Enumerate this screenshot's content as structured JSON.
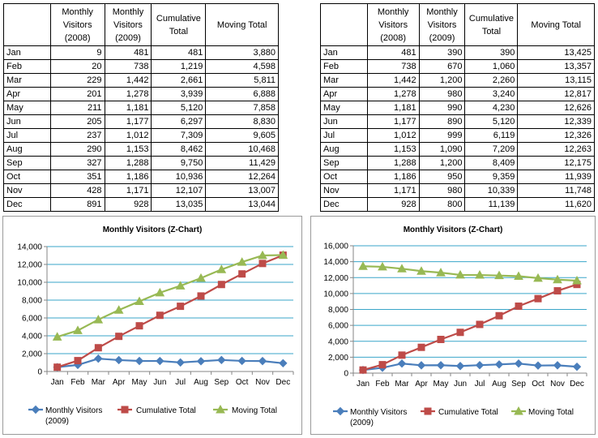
{
  "left_table": {
    "headers": [
      "",
      "Monthly\nVisitors\n(2008)",
      "Monthly\nVisitors\n(2009)",
      "Cumulative\nTotal",
      "Moving Total"
    ],
    "rows": [
      [
        "Jan",
        "9",
        "481",
        "481",
        "3,880"
      ],
      [
        "Feb",
        "20",
        "738",
        "1,219",
        "4,598"
      ],
      [
        "Mar",
        "229",
        "1,442",
        "2,661",
        "5,811"
      ],
      [
        "Apr",
        "201",
        "1,278",
        "3,939",
        "6,888"
      ],
      [
        "May",
        "211",
        "1,181",
        "5,120",
        "7,858"
      ],
      [
        "Jun",
        "205",
        "1,177",
        "6,297",
        "8,830"
      ],
      [
        "Jul",
        "237",
        "1,012",
        "7,309",
        "9,605"
      ],
      [
        "Aug",
        "290",
        "1,153",
        "8,462",
        "10,468"
      ],
      [
        "Sep",
        "327",
        "1,288",
        "9,750",
        "11,429"
      ],
      [
        "Oct",
        "351",
        "1,186",
        "10,936",
        "12,264"
      ],
      [
        "Nov",
        "428",
        "1,171",
        "12,107",
        "13,007"
      ],
      [
        "Dec",
        "891",
        "928",
        "13,035",
        "13,044"
      ]
    ]
  },
  "right_table": {
    "headers": [
      "",
      "Monthly\nVisitors\n(2008)",
      "Monthly\nVisitors\n(2009)",
      "Cumulative\nTotal",
      "Moving Total"
    ],
    "rows": [
      [
        "Jan",
        "481",
        "390",
        "390",
        "13,425"
      ],
      [
        "Feb",
        "738",
        "670",
        "1,060",
        "13,357"
      ],
      [
        "Mar",
        "1,442",
        "1,200",
        "2,260",
        "13,115"
      ],
      [
        "Apr",
        "1,278",
        "980",
        "3,240",
        "12,817"
      ],
      [
        "May",
        "1,181",
        "990",
        "4,230",
        "12,626"
      ],
      [
        "Jun",
        "1,177",
        "890",
        "5,120",
        "12,339"
      ],
      [
        "Jul",
        "1,012",
        "999",
        "6,119",
        "12,326"
      ],
      [
        "Aug",
        "1,153",
        "1,090",
        "7,209",
        "12,263"
      ],
      [
        "Sep",
        "1,288",
        "1,200",
        "8,409",
        "12,175"
      ],
      [
        "Oct",
        "1,186",
        "950",
        "9,359",
        "11,939"
      ],
      [
        "Nov",
        "1,171",
        "980",
        "10,339",
        "11,748"
      ],
      [
        "Dec",
        "928",
        "800",
        "11,139",
        "11,620"
      ]
    ]
  },
  "chart_data": [
    {
      "type": "line",
      "title": "Monthly Visitors (Z-Chart)",
      "categories": [
        "Jan",
        "Feb",
        "Mar",
        "Apr",
        "May",
        "Jun",
        "Jul",
        "Aug",
        "Sep",
        "Oct",
        "Nov",
        "Dec"
      ],
      "ylim": [
        0,
        14000
      ],
      "yticks": [
        0,
        2000,
        4000,
        6000,
        8000,
        10000,
        12000,
        14000
      ],
      "ytick_labels": [
        "0",
        "2,000",
        "4,000",
        "6,000",
        "8,000",
        "10,000",
        "12,000",
        "14,000"
      ],
      "gridlines": true,
      "legend_position": "bottom",
      "series": [
        {
          "name": "Monthly Visitors (2009)",
          "legend_lines": [
            "Monthly Visitors",
            "(2009)"
          ],
          "color": "#4a7ebb",
          "marker": "diamond",
          "values": [
            481,
            738,
            1442,
            1278,
            1181,
            1177,
            1012,
            1153,
            1288,
            1186,
            1171,
            928
          ]
        },
        {
          "name": "Cumulative Total",
          "legend_lines": [
            "Cumulative Total"
          ],
          "color": "#be4b48",
          "marker": "square",
          "values": [
            481,
            1219,
            2661,
            3939,
            5120,
            6297,
            7309,
            8462,
            9750,
            10936,
            12107,
            13035
          ]
        },
        {
          "name": "Moving Total",
          "legend_lines": [
            "Moving Total"
          ],
          "color": "#98b954",
          "marker": "triangle",
          "values": [
            3880,
            4598,
            5811,
            6888,
            7858,
            8830,
            9605,
            10468,
            11429,
            12264,
            13007,
            13044
          ]
        }
      ]
    },
    {
      "type": "line",
      "title": "Monthly Visitors (Z-Chart)",
      "categories": [
        "Jan",
        "Feb",
        "Mar",
        "Apr",
        "May",
        "Jun",
        "Jul",
        "Aug",
        "Sep",
        "Oct",
        "Nov",
        "Dec"
      ],
      "ylim": [
        0,
        16000
      ],
      "yticks": [
        0,
        2000,
        4000,
        6000,
        8000,
        10000,
        12000,
        14000,
        16000
      ],
      "ytick_labels": [
        "0",
        "2,000",
        "4,000",
        "6,000",
        "8,000",
        "10,000",
        "12,000",
        "14,000",
        "16,000"
      ],
      "gridlines": true,
      "legend_position": "bottom",
      "series": [
        {
          "name": "Monthly Visitors (2009)",
          "legend_lines": [
            "Monthly Visitors",
            "(2009)"
          ],
          "color": "#4a7ebb",
          "marker": "diamond",
          "values": [
            390,
            670,
            1200,
            980,
            990,
            890,
            999,
            1090,
            1200,
            950,
            980,
            800
          ]
        },
        {
          "name": "Cumulative Total",
          "legend_lines": [
            "Cumulative Total"
          ],
          "color": "#be4b48",
          "marker": "square",
          "values": [
            390,
            1060,
            2260,
            3240,
            4230,
            5120,
            6119,
            7209,
            8409,
            9359,
            10339,
            11139
          ]
        },
        {
          "name": "Moving Total",
          "legend_lines": [
            "Moving Total"
          ],
          "color": "#98b954",
          "marker": "triangle",
          "values": [
            13425,
            13357,
            13115,
            12817,
            12626,
            12339,
            12326,
            12263,
            12175,
            11939,
            11748,
            11620
          ]
        }
      ]
    }
  ]
}
